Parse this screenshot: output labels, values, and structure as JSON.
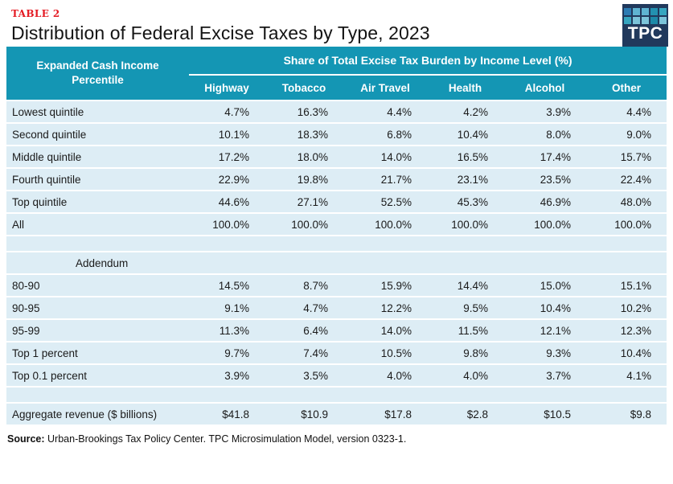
{
  "header": {
    "table_label": "TABLE 2",
    "title": "Distribution of Federal Excise Taxes by Type, 2023",
    "logo": {
      "text": "TPC",
      "squares": [
        "#2d7cb4",
        "#5fb4d2",
        "#5fb4d2",
        "#2391b0",
        "#37a6c0",
        "#37a6c0",
        "#7cc4da",
        "#7cc4da",
        "#1d89a8",
        "#7cc4da"
      ]
    }
  },
  "chart_data": {
    "type": "table",
    "title": "Distribution of Federal Excise Taxes by Type, 2023",
    "row_header": "Expanded Cash Income Percentile",
    "group_header": "Share of Total Excise Tax Burden by Income Level (%)",
    "columns": [
      "Highway",
      "Tobacco",
      "Air Travel",
      "Health",
      "Alcohol",
      "Other"
    ],
    "rows": [
      {
        "label": "Lowest quintile",
        "values": [
          "4.7%",
          "16.3%",
          "4.4%",
          "4.2%",
          "3.9%",
          "4.4%"
        ]
      },
      {
        "label": "Second quintile",
        "values": [
          "10.1%",
          "18.3%",
          "6.8%",
          "10.4%",
          "8.0%",
          "9.0%"
        ]
      },
      {
        "label": "Middle quintile",
        "values": [
          "17.2%",
          "18.0%",
          "14.0%",
          "16.5%",
          "17.4%",
          "15.7%"
        ]
      },
      {
        "label": "Fourth quintile",
        "values": [
          "22.9%",
          "19.8%",
          "21.7%",
          "23.1%",
          "23.5%",
          "22.4%"
        ]
      },
      {
        "label": "Top quintile",
        "values": [
          "44.6%",
          "27.1%",
          "52.5%",
          "45.3%",
          "46.9%",
          "48.0%"
        ]
      },
      {
        "label": "All",
        "values": [
          "100.0%",
          "100.0%",
          "100.0%",
          "100.0%",
          "100.0%",
          "100.0%"
        ]
      },
      {
        "type": "spacer"
      },
      {
        "label": "Addendum",
        "type": "section"
      },
      {
        "label": "80-90",
        "values": [
          "14.5%",
          "8.7%",
          "15.9%",
          "14.4%",
          "15.0%",
          "15.1%"
        ]
      },
      {
        "label": "90-95",
        "values": [
          "9.1%",
          "4.7%",
          "12.2%",
          "9.5%",
          "10.4%",
          "10.2%"
        ]
      },
      {
        "label": "95-99",
        "values": [
          "11.3%",
          "6.4%",
          "14.0%",
          "11.5%",
          "12.1%",
          "12.3%"
        ]
      },
      {
        "label": "Top 1 percent",
        "values": [
          "9.7%",
          "7.4%",
          "10.5%",
          "9.8%",
          "9.3%",
          "10.4%"
        ]
      },
      {
        "label": "Top 0.1 percent",
        "values": [
          "3.9%",
          "3.5%",
          "4.0%",
          "4.0%",
          "3.7%",
          "4.1%"
        ]
      },
      {
        "type": "spacer"
      },
      {
        "label": "Aggregate revenue ($ billions)",
        "values": [
          "$41.8",
          "$10.9",
          "$17.8",
          "$2.8",
          "$10.5",
          "$9.8"
        ]
      }
    ]
  },
  "footer": {
    "source_label": "Source:",
    "source_text": "Urban-Brookings Tax Policy Center. TPC Microsimulation Model, version 0323-1."
  },
  "colors": {
    "header_teal": "#1496b4",
    "row_blue": "#ddedf5",
    "table_label_red": "#e41b23",
    "logo_navy": "#21395c"
  }
}
